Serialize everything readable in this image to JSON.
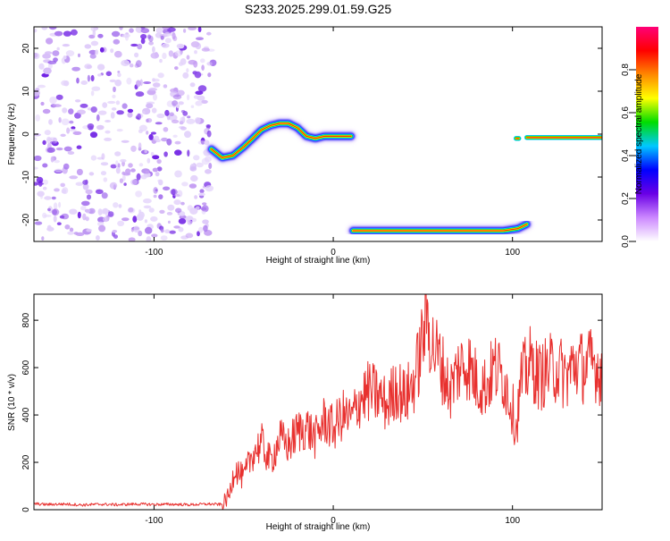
{
  "figure": {
    "title": "S233.2025.299.01.59.G25"
  },
  "chart_data": [
    {
      "type": "heatmap",
      "xlabel": "Height of straight line (km)",
      "ylabel": "Frequency (Hz)",
      "xlim": [
        -167,
        150
      ],
      "ylim": [
        -25,
        25
      ],
      "x_ticks": [
        -100,
        0,
        100
      ],
      "y_ticks": [
        -20,
        -10,
        0,
        10,
        20
      ],
      "grid": false,
      "colorbar": {
        "label": "Normalized spectral amplitude",
        "range": [
          0,
          1
        ],
        "ticks": [
          "0.0",
          "0.2",
          "0.4",
          "0.6",
          "0.8"
        ],
        "colors": [
          "#ffffff",
          "#cc88ff",
          "#6a00e6",
          "#0000ff",
          "#00c8ff",
          "#00dd00",
          "#ffff00",
          "#ff8800",
          "#ff0000",
          "#ff0077"
        ]
      },
      "noise_region": {
        "x_range": [
          -167,
          -65
        ],
        "y_range": [
          -25,
          25
        ]
      },
      "tracks": [
        {
          "name": "upper-track",
          "points": [
            [
              -68,
              -3.5
            ],
            [
              -62,
              -5.5
            ],
            [
              -56,
              -5
            ],
            [
              -50,
              -3
            ],
            [
              -45,
              -1
            ],
            [
              -40,
              1
            ],
            [
              -35,
              2
            ],
            [
              -30,
              2.5
            ],
            [
              -25,
              2.5
            ],
            [
              -20,
              1.5
            ],
            [
              -15,
              -0.5
            ],
            [
              -10,
              -1
            ],
            [
              -5,
              -0.5
            ],
            [
              0,
              -0.5
            ],
            [
              10,
              -0.5
            ]
          ]
        },
        {
          "name": "lower-track",
          "points": [
            [
              11,
              -22.5
            ],
            [
              20,
              -22.5
            ],
            [
              40,
              -22.5
            ],
            [
              60,
              -22.5
            ],
            [
              80,
              -22.5
            ],
            [
              95,
              -22.5
            ],
            [
              103,
              -22
            ],
            [
              108,
              -21
            ]
          ]
        },
        {
          "name": "right-track",
          "points": [
            [
              108,
              -0.8
            ],
            [
              120,
              -0.8
            ],
            [
              135,
              -0.8
            ],
            [
              150,
              -0.8
            ]
          ]
        },
        {
          "name": "dot-track",
          "points": [
            [
              102,
              -1
            ],
            [
              103.5,
              -1
            ]
          ]
        }
      ]
    },
    {
      "type": "line",
      "xlabel": "Height of straight line (km)",
      "ylabel": "SNR (10 * v/v)",
      "xlim": [
        -167,
        150
      ],
      "ylim": [
        0,
        910
      ],
      "x_ticks": [
        -100,
        0,
        100
      ],
      "y_ticks": [
        0,
        200,
        400,
        600,
        800
      ],
      "grid": false,
      "series": [
        {
          "color": "#e8312f",
          "x": [
            -167,
            -160,
            -150,
            -140,
            -130,
            -120,
            -110,
            -100,
            -90,
            -80,
            -70,
            -62,
            -58,
            -55,
            -50,
            -45,
            -40,
            -35,
            -30,
            -25,
            -20,
            -15,
            -10,
            -5,
            0,
            5,
            10,
            15,
            20,
            25,
            30,
            35,
            40,
            45,
            48,
            52,
            55,
            60,
            65,
            70,
            75,
            80,
            85,
            90,
            95,
            100,
            102,
            105,
            110,
            115,
            120,
            125,
            130,
            135,
            140,
            145,
            150
          ],
          "y": [
            25,
            22,
            24,
            20,
            23,
            21,
            24,
            22,
            23,
            21,
            24,
            22,
            60,
            180,
            130,
            240,
            280,
            200,
            300,
            270,
            330,
            350,
            300,
            380,
            340,
            400,
            380,
            470,
            500,
            480,
            440,
            520,
            470,
            540,
            640,
            830,
            700,
            620,
            500,
            600,
            620,
            540,
            520,
            600,
            560,
            430,
            340,
            550,
            620,
            560,
            590,
            600,
            560,
            620,
            600,
            620,
            580
          ]
        }
      ]
    }
  ]
}
